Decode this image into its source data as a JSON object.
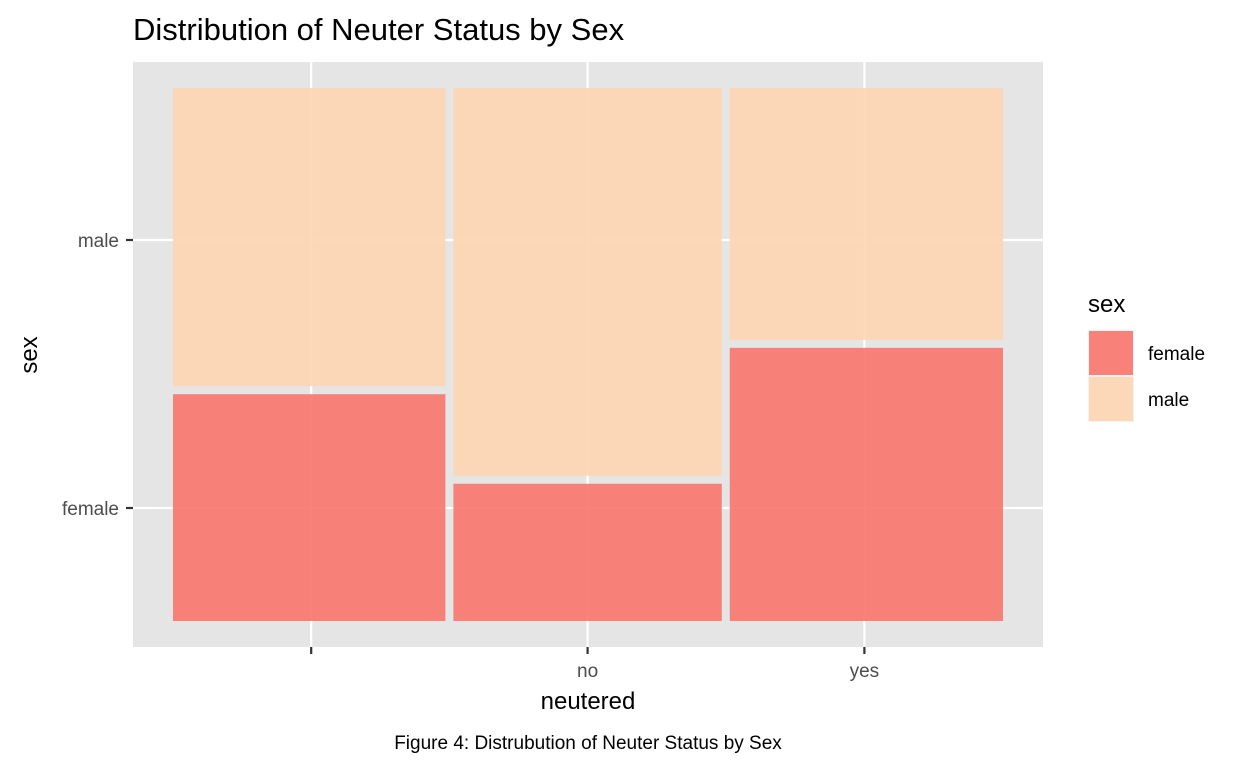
{
  "chart_data": {
    "type": "mosaic",
    "title": "Distribution of Neuter Status by Sex",
    "xlabel": "neutered",
    "ylabel": "sex",
    "x_categories": [
      "",
      "no",
      "yes"
    ],
    "y_categories": [
      "female",
      "male"
    ],
    "column_widths": [
      0.333,
      0.333,
      0.334
    ],
    "female_proportion": [
      0.433,
      0.265,
      0.52
    ],
    "legend": {
      "title": "sex",
      "position": "right",
      "entries": [
        {
          "label": "female",
          "color": "#F8766D"
        },
        {
          "label": "male",
          "color": "#FDD5B1"
        }
      ]
    },
    "grid": true,
    "caption": "Figure 4: Distrubution of Neuter Status by Sex"
  },
  "colors": {
    "panel_background": "#E5E5E5",
    "grid": "#FFFFFF",
    "female": "#F8766D",
    "male": "#FDD5B1"
  }
}
